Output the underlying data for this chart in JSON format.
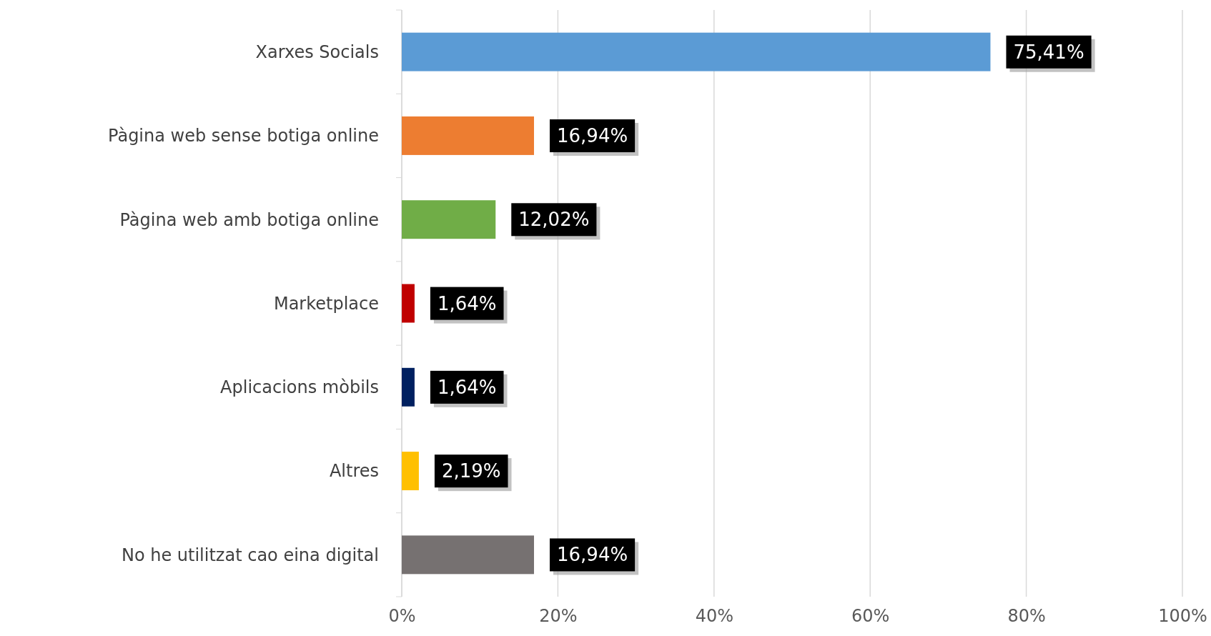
{
  "chart_data": {
    "type": "bar",
    "orientation": "horizontal",
    "categories": [
      "Xarxes Socials",
      "Pàgina web sense botiga online",
      "Pàgina web amb botiga online",
      "Marketplace",
      "Aplicacions mòbils",
      "Altres",
      "No he utilitzat cao eina digital"
    ],
    "values": [
      75.41,
      16.94,
      12.02,
      1.64,
      1.64,
      2.19,
      16.94
    ],
    "colors": [
      "#5b9bd5",
      "#ed7d31",
      "#70ad47",
      "#c00000",
      "#002060",
      "#ffc000",
      "#767171"
    ],
    "value_labels": [
      "75,41%",
      "16,94%",
      "12,02%",
      "1,64%",
      "1,64%",
      "2,19%",
      "16,94%"
    ],
    "xlim": [
      0,
      100
    ],
    "xticks": [
      {
        "value": 0,
        "label": "0%"
      },
      {
        "value": 20,
        "label": "20%"
      },
      {
        "value": 40,
        "label": "40%"
      },
      {
        "value": 60,
        "label": "60%"
      },
      {
        "value": 80,
        "label": "80%"
      },
      {
        "value": 100,
        "label": "100%"
      }
    ],
    "grid": "x"
  }
}
